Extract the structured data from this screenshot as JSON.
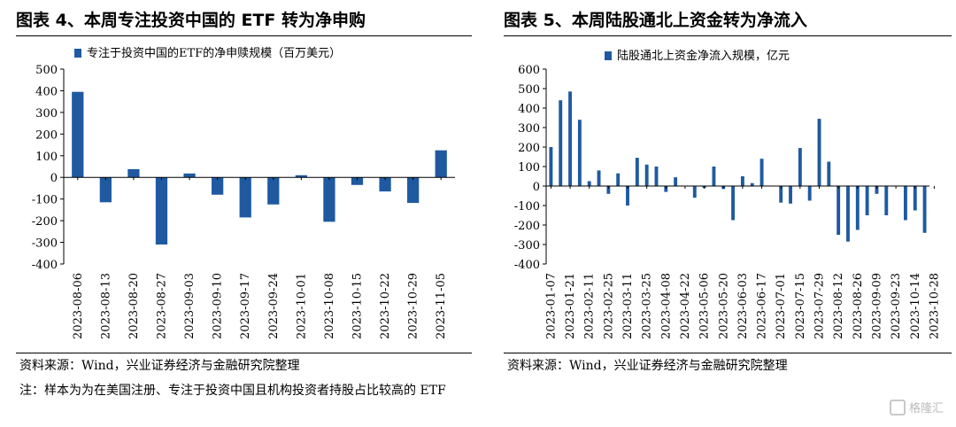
{
  "left": {
    "title": "图表 4、本周专注投资中国的 ETF 转为净申购",
    "source": "资料来源：Wind，兴业证券经济与金融研究院整理",
    "note": "注：样本为为在美国注册、专注于投资中国且机构投资者持股占比较高的 ETF"
  },
  "right": {
    "title": "图表 5、本周陆股通北上资金转为净流入",
    "source": "资料来源：Wind，兴业证券经济与金融研究院整理"
  },
  "watermark": "格隆汇",
  "colors": {
    "bar": "#1f5aa0"
  },
  "chart_data": [
    {
      "type": "bar",
      "title": "",
      "legend": "专注于投资中国的ETF的净申赎规模（百万美元）",
      "legend_position": "top-left",
      "grid": false,
      "ylim": [
        -400,
        500
      ],
      "yticks": [
        "500",
        "400",
        "300",
        "200",
        "100",
        "0",
        "-100",
        "-200",
        "-300",
        "-400"
      ],
      "ytick_values": [
        500,
        400,
        300,
        200,
        100,
        0,
        -100,
        -200,
        -300,
        -400
      ],
      "categories": [
        "2023-08-06",
        "2023-08-13",
        "2023-08-20",
        "2023-08-27",
        "2023-09-03",
        "2023-09-10",
        "2023-09-17",
        "2023-09-24",
        "2023-10-01",
        "2023-10-08",
        "2023-10-15",
        "2023-10-22",
        "2023-10-29",
        "2023-11-05"
      ],
      "values": [
        395,
        -115,
        38,
        -310,
        18,
        -80,
        -185,
        -125,
        10,
        -205,
        -35,
        -65,
        -118,
        125
      ]
    },
    {
      "type": "bar",
      "title": "",
      "legend": "陆股通北上资金净流入规模，亿元",
      "legend_position": "top-right",
      "grid": false,
      "ylim": [
        -400,
        600
      ],
      "yticks": [
        "600",
        "500",
        "400",
        "300",
        "200",
        "100",
        "0",
        "-100",
        "-200",
        "-300",
        "-400"
      ],
      "ytick_values": [
        600,
        500,
        400,
        300,
        200,
        100,
        0,
        -100,
        -200,
        -300,
        -400
      ],
      "tick_labels": [
        "2023-01-07",
        "2023-01-21",
        "2023-02-11",
        "2023-02-25",
        "2023-03-11",
        "2023-03-25",
        "2023-04-08",
        "2023-04-22",
        "2023-05-06",
        "2023-05-20",
        "2023-06-03",
        "2023-06-17",
        "2023-07-01",
        "2023-07-15",
        "2023-07-29",
        "2023-08-12",
        "2023-08-26",
        "2023-09-09",
        "2023-09-23",
        "2023-10-14",
        "2023-10-28"
      ],
      "tick_every": 2,
      "values": [
        200,
        440,
        485,
        340,
        25,
        80,
        -40,
        65,
        -100,
        145,
        110,
        100,
        -30,
        45,
        0,
        -60,
        -10,
        100,
        -15,
        -175,
        50,
        15,
        140,
        0,
        -85,
        -90,
        195,
        -75,
        345,
        125,
        -250,
        -285,
        -225,
        -150,
        -40,
        -150,
        0,
        -175,
        -125,
        -240
      ]
    }
  ]
}
